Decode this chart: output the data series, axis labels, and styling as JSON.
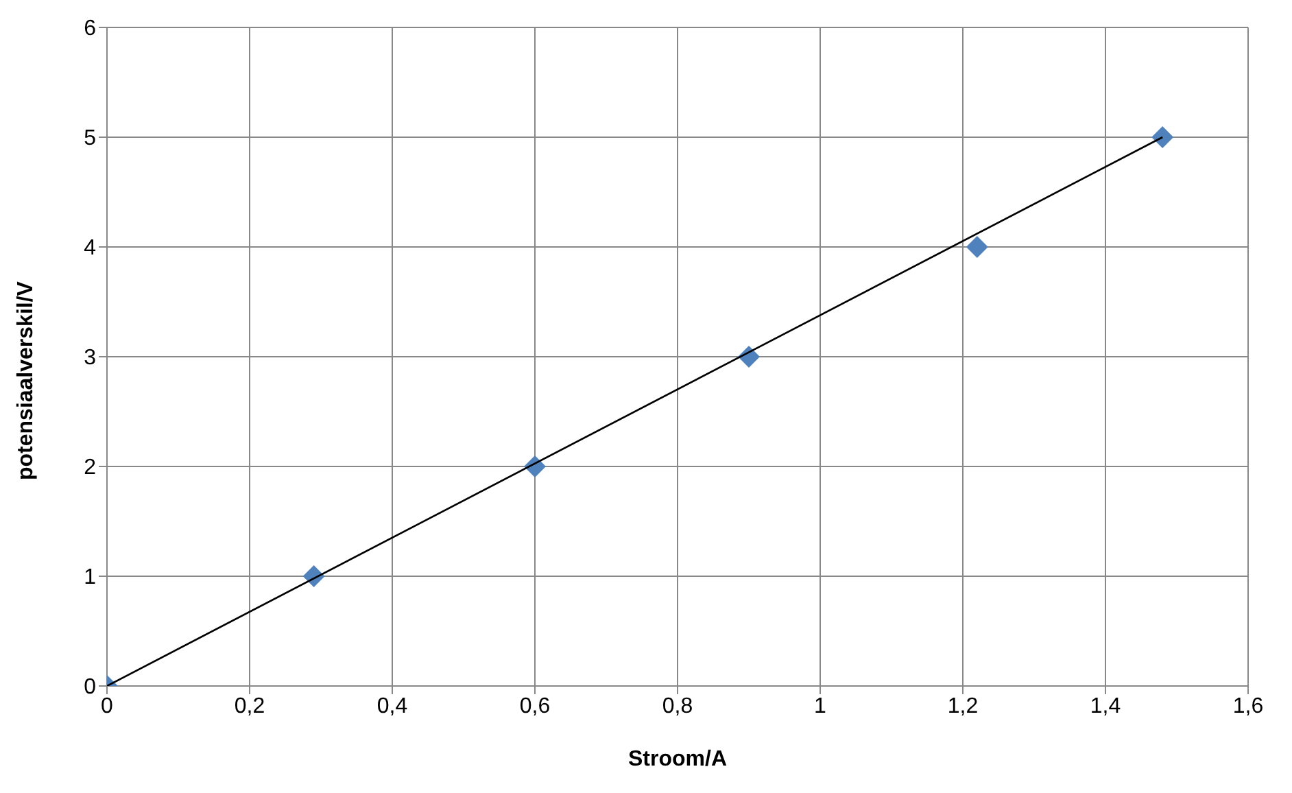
{
  "chart_data": {
    "type": "scatter",
    "xlabel": "Stroom/A",
    "ylabel": "potensiaalverskil/V",
    "xlim": [
      0,
      1.6
    ],
    "xticks": [
      0,
      {
        "value": 0.2,
        "label": "0,2"
      },
      {
        "value": 0.4,
        "label": "0,4"
      },
      {
        "value": 0.6,
        "label": "0,6"
      },
      {
        "value": 0.8,
        "label": "0,8"
      },
      1,
      {
        "value": 1.2,
        "label": "1,2"
      },
      {
        "value": 1.4,
        "label": "1,4"
      },
      {
        "value": 1.6,
        "label": "1,6"
      }
    ],
    "ylim": [
      0,
      6
    ],
    "yticks": [
      0,
      1,
      2,
      3,
      4,
      5,
      6
    ],
    "grid": true,
    "series": [
      {
        "color": "#4f81bd",
        "marker": "diamond",
        "x": [
          0,
          0.29,
          0.6,
          0.9,
          1.22,
          1.48
        ],
        "values": [
          0,
          1,
          2,
          3,
          4,
          5
        ]
      },
      {
        "type": "line",
        "color": "#000000",
        "marker": "none",
        "x": [
          0,
          1.48
        ],
        "values": [
          0,
          5
        ]
      }
    ]
  }
}
